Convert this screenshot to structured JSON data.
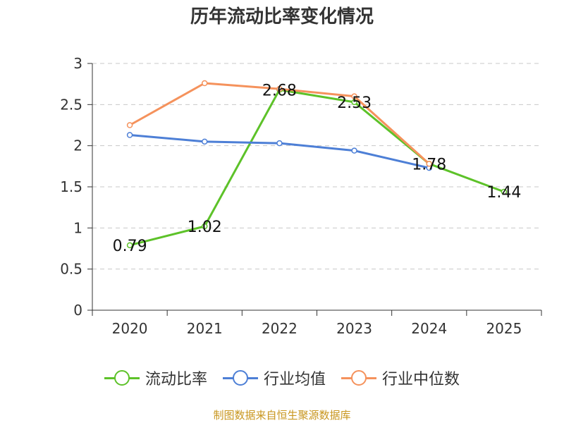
{
  "chart_data": {
    "type": "line",
    "title": "历年流动比率变化情况",
    "categories": [
      "2020",
      "2021",
      "2022",
      "2023",
      "2024",
      "2025"
    ],
    "ylim": [
      0,
      3
    ],
    "yticks": [
      "0",
      "0.5",
      "1",
      "1.5",
      "2",
      "2.5",
      "3"
    ],
    "grid": true,
    "legend_position": "bottom",
    "series": [
      {
        "name": "流动比率",
        "color": "#5dc229",
        "values": [
          0.79,
          1.02,
          2.68,
          2.53,
          1.78,
          1.44
        ],
        "labels": [
          "0.79",
          "1.02",
          "2.68",
          "2.53",
          "1.78",
          "1.44"
        ]
      },
      {
        "name": "行业均值",
        "color": "#4d7fd6",
        "values": [
          2.13,
          2.05,
          2.03,
          1.94,
          1.73,
          null
        ]
      },
      {
        "name": "行业中位数",
        "color": "#f5925c",
        "values": [
          2.25,
          2.76,
          2.69,
          2.6,
          1.78,
          null
        ]
      }
    ],
    "source": "制图数据来自恒生聚源数据库"
  }
}
